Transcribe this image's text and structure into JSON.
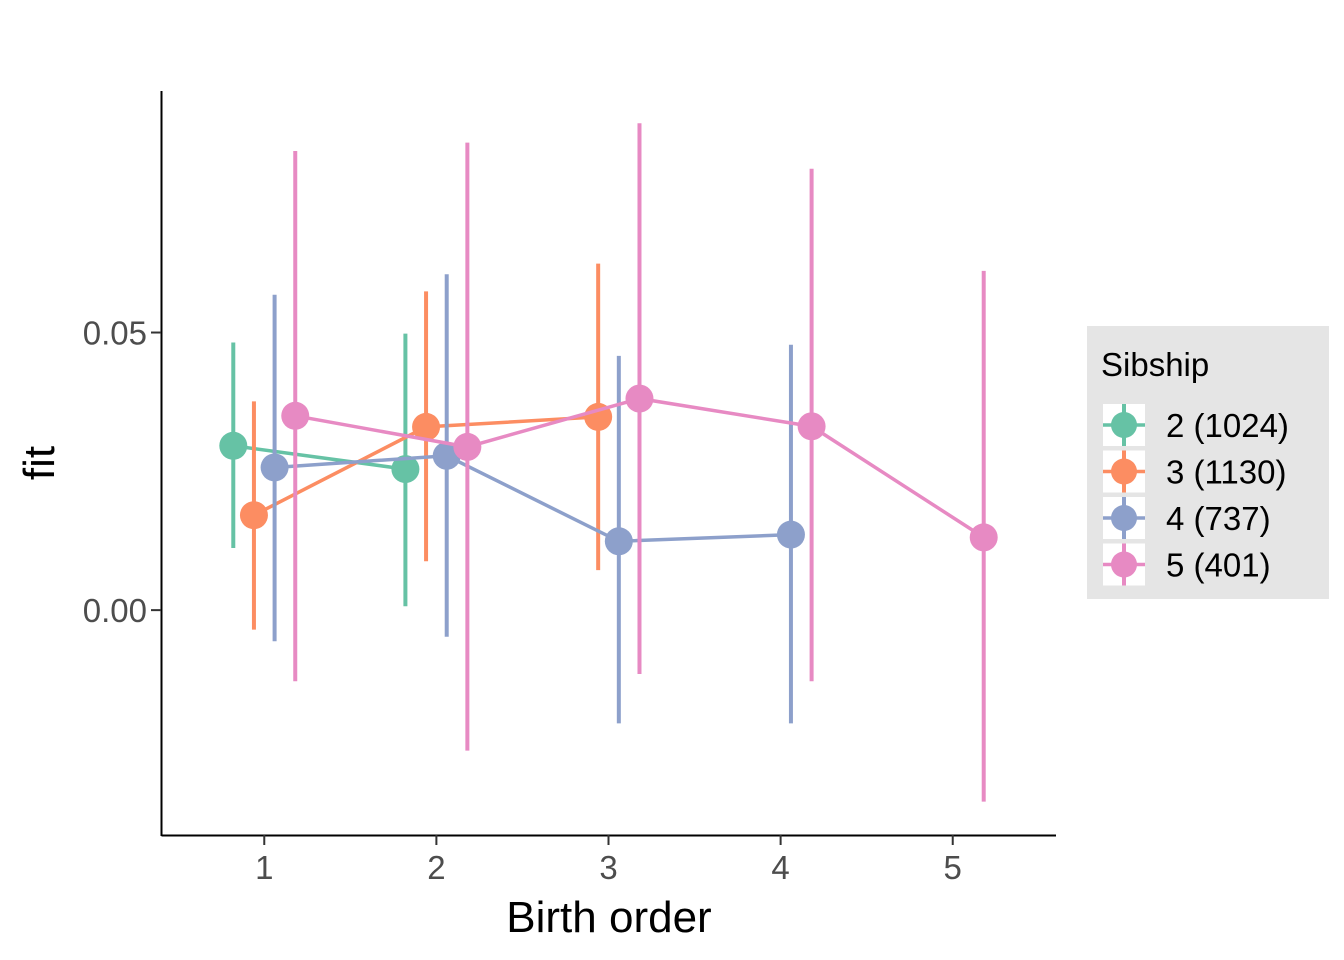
{
  "chart_data": {
    "type": "scatter",
    "title": "",
    "xlabel": "Birth order",
    "ylabel": "fit",
    "x_ticks": [
      1,
      2,
      3,
      4,
      5
    ],
    "y_ticks": [
      0.0,
      0.05
    ],
    "y_tick_labels": [
      "0.00",
      "0.05"
    ],
    "xlim": [
      0.4,
      5.6
    ],
    "ylim": [
      -0.0405,
      0.0935
    ],
    "grid": false,
    "legend_position": "right",
    "legend_title": "Sibship",
    "dodge": [
      -0.18,
      -0.06,
      0.06,
      0.18
    ],
    "series": [
      {
        "name": "2 (1024)",
        "color": "#66c2a5",
        "x": [
          1,
          2
        ],
        "fit": [
          0.0296,
          0.0254
        ],
        "lower": [
          0.0112,
          0.0007
        ],
        "upper": [
          0.0482,
          0.0498
        ]
      },
      {
        "name": "3 (1130)",
        "color": "#fc8d62",
        "x": [
          1,
          2,
          3
        ],
        "fit": [
          0.0171,
          0.033,
          0.0348
        ],
        "lower": [
          -0.0035,
          0.0088,
          0.0072
        ],
        "upper": [
          0.0376,
          0.0574,
          0.0624
        ]
      },
      {
        "name": "4 (737)",
        "color": "#8da0cb",
        "x": [
          1,
          2,
          3,
          4
        ],
        "fit": [
          0.0257,
          0.0278,
          0.0124,
          0.0136
        ],
        "lower": [
          -0.0056,
          -0.0048,
          -0.0204,
          -0.0204
        ],
        "upper": [
          0.0568,
          0.0605,
          0.0458,
          0.0478
        ]
      },
      {
        "name": "5 (401)",
        "color": "#e78ac3",
        "x": [
          1,
          2,
          3,
          4,
          5
        ],
        "fit": [
          0.035,
          0.0294,
          0.0381,
          0.0331,
          0.0131
        ],
        "lower": [
          -0.0128,
          -0.0253,
          -0.0115,
          -0.0128,
          -0.0345
        ],
        "upper": [
          0.0827,
          0.0842,
          0.0877,
          0.0795,
          0.0611
        ]
      }
    ]
  }
}
